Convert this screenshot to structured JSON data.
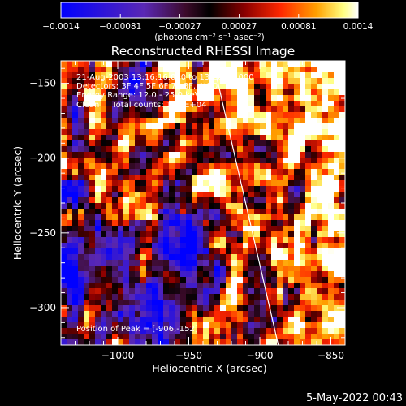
{
  "colorbar": {
    "ticks": [
      "-0.0014",
      "-0.00081",
      "-0.00027",
      "0.00027",
      "0.00081",
      "0.0014"
    ],
    "unit_label": "(photons cm⁻² s⁻¹ asec⁻²)"
  },
  "info": {
    "time": "21-Aug-2003 13:16:16.000 to 13:20:16.000",
    "detectors": "Detectors: 3F 4F 5F 6F 7F 8F, Att 0",
    "energy": "Energy Range: 12.0 - 25.0 keV",
    "method": "Clean     Total counts: 1.01E+04"
  },
  "peak_label": "Position of Peak = [-906,-152]",
  "footer_date": "5-May-2022 00:43",
  "chart_data": {
    "type": "heatmap",
    "title": "Reconstructed RHESSI Image",
    "xlabel": "Heliocentric X (arcsec)",
    "ylabel": "Heliocentric Y (arcsec)",
    "xlim": [
      -1040,
      -840
    ],
    "ylim": [
      -325,
      -135
    ],
    "x_ticks": [
      -1000,
      -950,
      -900,
      -850
    ],
    "x_tick_labels": [
      "−1000",
      "−950",
      "−900",
      "−850"
    ],
    "y_ticks": [
      -150,
      -200,
      -250,
      -300
    ],
    "y_tick_labels": [
      "−150",
      "−200",
      "−250",
      "−300"
    ],
    "value_range": [
      -0.0014,
      0.0014
    ],
    "colormap": "blue-purple-red-yellow-white",
    "limb_line": {
      "from": [
        -933,
        -135
      ],
      "to": [
        -887,
        -325
      ]
    }
  }
}
